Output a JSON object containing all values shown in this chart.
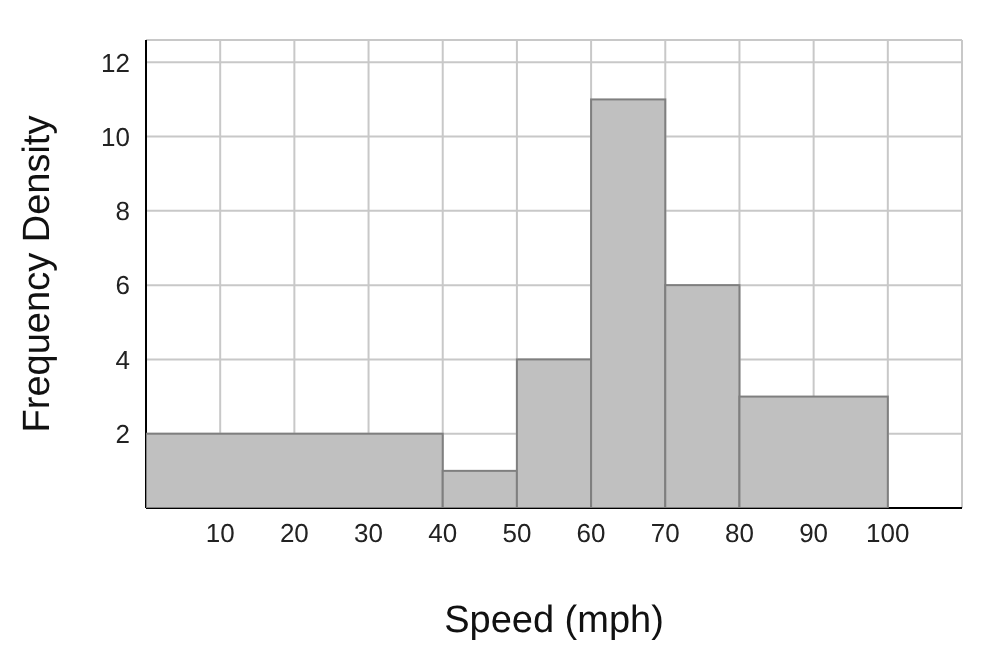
{
  "chart_data": {
    "type": "histogram",
    "xlabel": "Speed (mph)",
    "ylabel": "Frequency Density",
    "bins": [
      0,
      40,
      50,
      60,
      70,
      80,
      100
    ],
    "values": [
      2,
      1,
      4,
      11,
      6,
      3
    ],
    "color": "#c0c0c0",
    "xlim": [
      0,
      110
    ],
    "xticks": [
      10,
      20,
      30,
      40,
      50,
      60,
      70,
      80,
      90,
      100
    ],
    "ylim": [
      0,
      12.6
    ],
    "yticks": [
      2,
      4,
      6,
      8,
      10,
      12
    ],
    "grid": true
  }
}
